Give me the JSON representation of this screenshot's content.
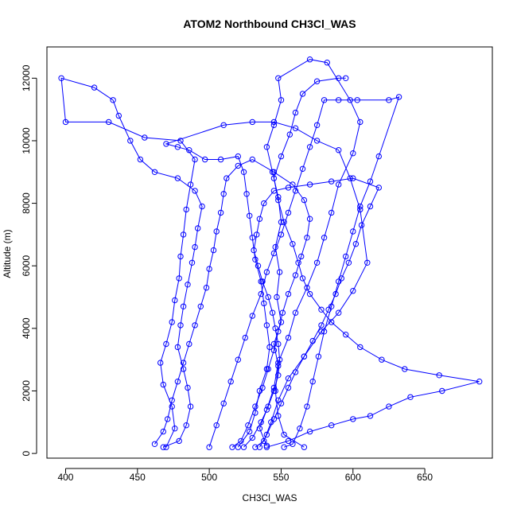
{
  "chart_data": {
    "type": "scatter",
    "title": "ATOM2 Northbound CH3Cl_WAS",
    "xlabel": "CH3Cl_WAS",
    "ylabel": "Altitude (m)",
    "xlim": [
      387,
      697
    ],
    "ylim": [
      -150,
      13000
    ],
    "x_ticks": [
      400,
      450,
      500,
      550,
      600,
      650
    ],
    "y_ticks": [
      0,
      2000,
      4000,
      6000,
      8000,
      10000,
      12000
    ],
    "x_tick_labels": [
      "400",
      "450",
      "500",
      "550",
      "600",
      "650"
    ],
    "y_tick_labels": [
      "0",
      "2000",
      "4000",
      "6000",
      "8000",
      "10000",
      "12000"
    ],
    "grid": false,
    "legend": "none",
    "marker": "open-circle",
    "connected": true,
    "color": "#0000ff",
    "series": [
      {
        "values": [
          [
            566,
            200
          ],
          [
            552,
            600
          ],
          [
            548,
            1200
          ],
          [
            546,
            2000
          ],
          [
            548,
            2800
          ],
          [
            545,
            3500
          ],
          [
            550,
            4200
          ],
          [
            547,
            5000
          ],
          [
            549,
            5800
          ],
          [
            546,
            6600
          ],
          [
            550,
            7400
          ],
          [
            548,
            8200
          ],
          [
            544,
            9000
          ],
          [
            540,
            9800
          ],
          [
            545,
            10500
          ],
          [
            550,
            11300
          ],
          [
            548,
            12000
          ],
          [
            570,
            12600
          ],
          [
            582,
            12500
          ],
          [
            598,
            11300
          ],
          [
            605,
            10600
          ],
          [
            600,
            9600
          ],
          [
            590,
            8600
          ],
          [
            585,
            7700
          ],
          [
            580,
            6900
          ],
          [
            575,
            6100
          ],
          [
            568,
            5300
          ],
          [
            560,
            4500
          ],
          [
            555,
            3700
          ],
          [
            548,
            2900
          ],
          [
            545,
            2100
          ],
          [
            540,
            1400
          ],
          [
            535,
            800
          ],
          [
            540,
            250
          ]
        ]
      },
      {
        "values": [
          [
            470,
            200
          ],
          [
            476,
            800
          ],
          [
            474,
            1500
          ],
          [
            468,
            2200
          ],
          [
            466,
            2900
          ],
          [
            470,
            3500
          ],
          [
            474,
            4200
          ],
          [
            476,
            4900
          ],
          [
            479,
            5600
          ],
          [
            480,
            6300
          ],
          [
            482,
            7000
          ],
          [
            484,
            7800
          ],
          [
            487,
            8600
          ],
          [
            490,
            9400
          ],
          [
            480,
            10000
          ],
          [
            455,
            10100
          ],
          [
            430,
            10600
          ],
          [
            400,
            10600
          ],
          [
            397,
            12000
          ],
          [
            420,
            11700
          ],
          [
            433,
            11300
          ],
          [
            437,
            10800
          ],
          [
            445,
            10000
          ],
          [
            452,
            9400
          ],
          [
            462,
            9000
          ],
          [
            478,
            8800
          ],
          [
            490,
            8400
          ],
          [
            495,
            7900
          ],
          [
            492,
            7200
          ],
          [
            490,
            6600
          ],
          [
            488,
            6100
          ],
          [
            485,
            5400
          ],
          [
            482,
            4700
          ],
          [
            480,
            4100
          ],
          [
            478,
            3400
          ],
          [
            482,
            2700
          ],
          [
            485,
            2100
          ],
          [
            487,
            1500
          ],
          [
            484,
            900
          ],
          [
            479,
            400
          ],
          [
            468,
            200
          ]
        ]
      },
      {
        "values": [
          [
            520,
            200
          ],
          [
            528,
            700
          ],
          [
            532,
            1300
          ],
          [
            535,
            2000
          ],
          [
            540,
            2700
          ],
          [
            542,
            3400
          ],
          [
            540,
            4100
          ],
          [
            538,
            4800
          ],
          [
            536,
            5500
          ],
          [
            532,
            6200
          ],
          [
            530,
            6900
          ],
          [
            528,
            7600
          ],
          [
            526,
            8300
          ],
          [
            524,
            9000
          ],
          [
            520,
            9500
          ],
          [
            508,
            9400
          ],
          [
            497,
            9400
          ],
          [
            486,
            9700
          ],
          [
            478,
            9800
          ],
          [
            470,
            9900
          ],
          [
            510,
            10500
          ],
          [
            530,
            10600
          ],
          [
            545,
            10600
          ],
          [
            560,
            10400
          ],
          [
            575,
            10000
          ],
          [
            590,
            9700
          ],
          [
            598,
            8800
          ],
          [
            605,
            7800
          ],
          [
            610,
            6100
          ],
          [
            600,
            5200
          ],
          [
            590,
            4500
          ],
          [
            578,
            3900
          ],
          [
            566,
            3100
          ],
          [
            555,
            2400
          ],
          [
            548,
            1700
          ],
          [
            543,
            1000
          ],
          [
            538,
            400
          ],
          [
            532,
            200
          ]
        ]
      },
      {
        "values": [
          [
            500,
            200
          ],
          [
            505,
            900
          ],
          [
            510,
            1600
          ],
          [
            515,
            2300
          ],
          [
            520,
            3000
          ],
          [
            525,
            3700
          ],
          [
            530,
            4400
          ],
          [
            536,
            5100
          ],
          [
            540,
            5800
          ],
          [
            545,
            6400
          ],
          [
            550,
            7000
          ],
          [
            555,
            7700
          ],
          [
            560,
            8400
          ],
          [
            565,
            9100
          ],
          [
            570,
            9800
          ],
          [
            575,
            10500
          ],
          [
            580,
            11300
          ],
          [
            590,
            11300
          ],
          [
            603,
            11300
          ],
          [
            625,
            11300
          ],
          [
            632,
            11400
          ],
          [
            618,
            9500
          ],
          [
            612,
            8700
          ],
          [
            605,
            7900
          ],
          [
            600,
            7100
          ],
          [
            595,
            6300
          ],
          [
            590,
            5500
          ],
          [
            585,
            4700
          ],
          [
            580,
            3900
          ],
          [
            576,
            3100
          ],
          [
            572,
            2300
          ],
          [
            568,
            1500
          ],
          [
            563,
            800
          ],
          [
            558,
            300
          ],
          [
            552,
            200
          ]
        ]
      },
      {
        "values": [
          [
            540,
            200
          ],
          [
            555,
            400
          ],
          [
            570,
            700
          ],
          [
            585,
            900
          ],
          [
            600,
            1100
          ],
          [
            612,
            1200
          ],
          [
            625,
            1500
          ],
          [
            640,
            1800
          ],
          [
            662,
            2000
          ],
          [
            688,
            2300
          ],
          [
            660,
            2500
          ],
          [
            636,
            2700
          ],
          [
            620,
            3000
          ],
          [
            605,
            3400
          ],
          [
            595,
            3800
          ],
          [
            585,
            4200
          ],
          [
            578,
            4600
          ],
          [
            570,
            5100
          ],
          [
            565,
            5600
          ],
          [
            562,
            6100
          ],
          [
            558,
            6700
          ],
          [
            552,
            7400
          ],
          [
            548,
            8100
          ],
          [
            545,
            8800
          ],
          [
            550,
            9500
          ],
          [
            556,
            10200
          ],
          [
            560,
            10900
          ],
          [
            565,
            11500
          ],
          [
            575,
            11900
          ],
          [
            590,
            12000
          ],
          [
            595,
            12000
          ]
        ]
      },
      {
        "values": [
          [
            535,
            200
          ],
          [
            540,
            600
          ],
          [
            545,
            1100
          ],
          [
            550,
            1600
          ],
          [
            555,
            2100
          ],
          [
            560,
            2600
          ],
          [
            566,
            3100
          ],
          [
            572,
            3600
          ],
          [
            578,
            4100
          ],
          [
            583,
            4600
          ],
          [
            588,
            5100
          ],
          [
            592,
            5600
          ],
          [
            597,
            6100
          ],
          [
            602,
            6700
          ],
          [
            606,
            7300
          ],
          [
            612,
            7900
          ],
          [
            618,
            8500
          ],
          [
            600,
            8800
          ],
          [
            585,
            8700
          ],
          [
            570,
            8600
          ],
          [
            555,
            8500
          ],
          [
            545,
            8400
          ],
          [
            538,
            8000
          ],
          [
            535,
            7500
          ],
          [
            533,
            7000
          ],
          [
            531,
            6500
          ],
          [
            534,
            6000
          ],
          [
            537,
            5500
          ],
          [
            541,
            5000
          ],
          [
            544,
            4500
          ],
          [
            546,
            4000
          ],
          [
            548,
            3500
          ],
          [
            549,
            3000
          ],
          [
            548,
            2500
          ],
          [
            545,
            2000
          ],
          [
            541,
            1500
          ],
          [
            536,
            1000
          ],
          [
            530,
            500
          ],
          [
            524,
            200
          ]
        ]
      },
      {
        "values": [
          [
            462,
            300
          ],
          [
            468,
            700
          ],
          [
            471,
            1100
          ],
          [
            474,
            1700
          ],
          [
            478,
            2300
          ],
          [
            482,
            2900
          ],
          [
            486,
            3500
          ],
          [
            490,
            4100
          ],
          [
            494,
            4700
          ],
          [
            498,
            5300
          ],
          [
            500,
            5900
          ],
          [
            503,
            6500
          ],
          [
            505,
            7100
          ],
          [
            508,
            7700
          ],
          [
            510,
            8300
          ],
          [
            512,
            8800
          ],
          [
            520,
            9200
          ],
          [
            530,
            9400
          ],
          [
            545,
            9000
          ],
          [
            558,
            8600
          ],
          [
            566,
            8100
          ],
          [
            570,
            7500
          ],
          [
            568,
            6900
          ],
          [
            564,
            6300
          ],
          [
            560,
            5700
          ],
          [
            555,
            5100
          ],
          [
            551,
            4500
          ],
          [
            548,
            3900
          ],
          [
            545,
            3300
          ],
          [
            541,
            2700
          ],
          [
            537,
            2100
          ],
          [
            532,
            1500
          ],
          [
            527,
            900
          ],
          [
            522,
            400
          ],
          [
            516,
            200
          ]
        ]
      }
    ]
  }
}
